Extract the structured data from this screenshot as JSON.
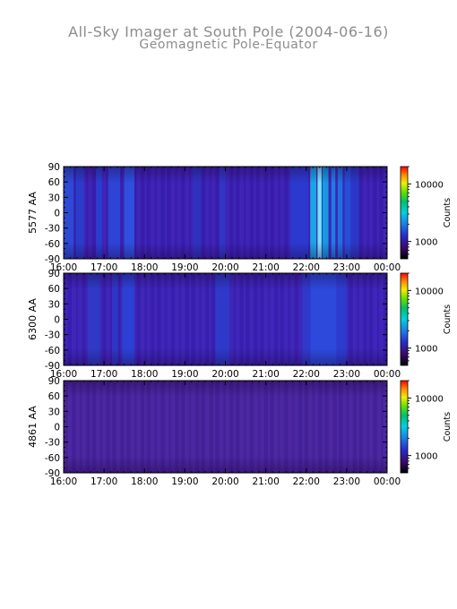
{
  "header": {
    "title": "All-Sky Imager at South Pole (2004-06-16)",
    "subtitle": "Geomagnetic Pole-Equator"
  },
  "chart_data": [
    {
      "type": "heatmap",
      "ylabel": "5577 AA",
      "x_ticks": [
        "16:00",
        "17:00",
        "18:00",
        "19:00",
        "20:00",
        "21:00",
        "22:00",
        "23:00",
        "00:00"
      ],
      "xlim_hours": [
        16,
        24
      ],
      "y_ticks": [
        90,
        60,
        30,
        0,
        -30,
        -60,
        -90
      ],
      "ylim": [
        -90,
        90
      ],
      "colorbar": {
        "label": "Counts",
        "scale": "log",
        "range": [
          500,
          20000
        ],
        "ticks": [
          1000,
          10000
        ],
        "tick_labels": [
          "1000",
          "10000"
        ]
      },
      "base_color": "#3a20b0",
      "bands": [
        {
          "x0": 16.0,
          "x1": 16.25,
          "color": "#2c4fd8"
        },
        {
          "x0": 16.3,
          "x1": 16.5,
          "color": "#2a3fcc"
        },
        {
          "x0": 16.8,
          "x1": 16.95,
          "color": "#2a40d0"
        },
        {
          "x0": 17.1,
          "x1": 17.4,
          "color": "#2c48d8"
        },
        {
          "x0": 17.5,
          "x1": 17.75,
          "color": "#2e55e0"
        },
        {
          "x0": 19.2,
          "x1": 19.4,
          "color": "#2f34c0"
        },
        {
          "x0": 19.85,
          "x1": 20.0,
          "color": "#3038c4"
        },
        {
          "x0": 21.6,
          "x1": 22.05,
          "color": "#2a3cd0"
        },
        {
          "x0": 22.1,
          "x1": 22.25,
          "color": "#17b4ea"
        },
        {
          "x0": 22.28,
          "x1": 22.38,
          "color": "#7ef7ff"
        },
        {
          "x0": 22.4,
          "x1": 22.55,
          "color": "#11a8e6"
        },
        {
          "x0": 22.62,
          "x1": 22.72,
          "color": "#1c86e8"
        },
        {
          "x0": 22.78,
          "x1": 22.9,
          "color": "#1a7ae2"
        },
        {
          "x0": 22.95,
          "x1": 23.1,
          "color": "#2553da"
        },
        {
          "x0": 23.1,
          "x1": 23.3,
          "color": "#2b3ac8"
        }
      ]
    },
    {
      "type": "heatmap",
      "ylabel": "6300 AA",
      "x_ticks": [
        "16:00",
        "17:00",
        "18:00",
        "19:00",
        "20:00",
        "21:00",
        "22:00",
        "23:00",
        "00:00"
      ],
      "xlim_hours": [
        16,
        24
      ],
      "y_ticks": [
        90,
        60,
        30,
        0,
        -30,
        -60,
        -90
      ],
      "ylim": [
        -90,
        90
      ],
      "colorbar": {
        "label": "Counts",
        "scale": "log",
        "range": [
          500,
          20000
        ],
        "ticks": [
          1000,
          10000
        ],
        "tick_labels": [
          "1000",
          "10000"
        ]
      },
      "base_color": "#3a22b2",
      "bands": [
        {
          "x0": 16.6,
          "x1": 16.9,
          "color": "#2d3cc8"
        },
        {
          "x0": 17.2,
          "x1": 17.35,
          "color": "#2c3ac6"
        },
        {
          "x0": 17.45,
          "x1": 17.75,
          "color": "#2a45d6"
        },
        {
          "x0": 19.75,
          "x1": 20.1,
          "color": "#2e3ccc"
        },
        {
          "x0": 21.9,
          "x1": 22.1,
          "color": "#2d3ccc"
        },
        {
          "x0": 22.1,
          "x1": 22.75,
          "color": "#2a4ee0"
        },
        {
          "x0": 22.75,
          "x1": 23.0,
          "color": "#2c3ed0"
        }
      ]
    },
    {
      "type": "heatmap",
      "ylabel": "4861 AA",
      "x_ticks": [
        "16:00",
        "17:00",
        "18:00",
        "19:00",
        "20:00",
        "21:00",
        "22:00",
        "23:00",
        "00:00"
      ],
      "xlim_hours": [
        16,
        24
      ],
      "y_ticks": [
        90,
        60,
        30,
        0,
        -30,
        -60,
        -90
      ],
      "ylim": [
        -90,
        90
      ],
      "colorbar": {
        "label": "Counts",
        "scale": "log",
        "range": [
          500,
          20000
        ],
        "ticks": [
          1000,
          10000
        ],
        "tick_labels": [
          "1000",
          "10000"
        ]
      },
      "base_color": "#4a2496",
      "bands": []
    }
  ]
}
